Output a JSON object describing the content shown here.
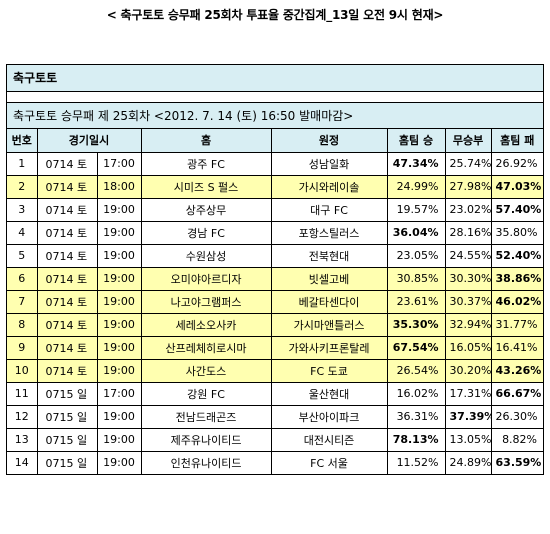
{
  "title": "< 축구토토 승무패 25회차 투표율 중간집계_13일 오전 9시 현재>",
  "category": "축구토토",
  "subtitle": "축구토토 승무패 제 25회차 <2012. 7. 14 (토) 16:50 발매마감>",
  "headers": {
    "no": "번호",
    "schedule": "경기일시",
    "home": "홈",
    "away": "원정",
    "home_win": "홈팀 승",
    "draw": "무승부",
    "home_loss": "홈팀 패"
  },
  "rows": [
    {
      "no": "1",
      "date": "0714 토",
      "time": "17:00",
      "home": "광주 FC",
      "away": "성남일화",
      "win": "47.34%",
      "draw": "25.74%",
      "loss": "26.92%",
      "highlight": false,
      "bold": "win"
    },
    {
      "no": "2",
      "date": "0714 토",
      "time": "18:00",
      "home": "시미즈 S 펄스",
      "away": "가시와레이솔",
      "win": "24.99%",
      "draw": "27.98%",
      "loss": "47.03%",
      "highlight": true,
      "bold": "loss"
    },
    {
      "no": "3",
      "date": "0714 토",
      "time": "19:00",
      "home": "상주상무",
      "away": "대구 FC",
      "win": "19.57%",
      "draw": "23.02%",
      "loss": "57.40%",
      "highlight": false,
      "bold": "loss"
    },
    {
      "no": "4",
      "date": "0714 토",
      "time": "19:00",
      "home": "경남 FC",
      "away": "포항스틸러스",
      "win": "36.04%",
      "draw": "28.16%",
      "loss": "35.80%",
      "highlight": false,
      "bold": "win"
    },
    {
      "no": "5",
      "date": "0714 토",
      "time": "19:00",
      "home": "수원삼성",
      "away": "전북현대",
      "win": "23.05%",
      "draw": "24.55%",
      "loss": "52.40%",
      "highlight": false,
      "bold": "loss"
    },
    {
      "no": "6",
      "date": "0714 토",
      "time": "19:00",
      "home": "오미야아르디자",
      "away": "빗셀고베",
      "win": "30.85%",
      "draw": "30.30%",
      "loss": "38.86%",
      "highlight": true,
      "bold": "loss"
    },
    {
      "no": "7",
      "date": "0714 토",
      "time": "19:00",
      "home": "나고야그램퍼스",
      "away": "베갈타센다이",
      "win": "23.61%",
      "draw": "30.37%",
      "loss": "46.02%",
      "highlight": true,
      "bold": "loss"
    },
    {
      "no": "8",
      "date": "0714 토",
      "time": "19:00",
      "home": "세레소오사카",
      "away": "가시마앤틀러스",
      "win": "35.30%",
      "draw": "32.94%",
      "loss": "31.77%",
      "highlight": true,
      "bold": "win"
    },
    {
      "no": "9",
      "date": "0714 토",
      "time": "19:00",
      "home": "산프레체히로시마",
      "away": "가와사키프론탈레",
      "win": "67.54%",
      "draw": "16.05%",
      "loss": "16.41%",
      "highlight": true,
      "bold": "win"
    },
    {
      "no": "10",
      "date": "0714 토",
      "time": "19:00",
      "home": "사간도스",
      "away": "FC 도쿄",
      "win": "26.54%",
      "draw": "30.20%",
      "loss": "43.26%",
      "highlight": true,
      "bold": "loss"
    },
    {
      "no": "11",
      "date": "0715 일",
      "time": "17:00",
      "home": "강원 FC",
      "away": "울산현대",
      "win": "16.02%",
      "draw": "17.31%",
      "loss": "66.67%",
      "highlight": false,
      "bold": "loss"
    },
    {
      "no": "12",
      "date": "0715 일",
      "time": "19:00",
      "home": "전남드래곤즈",
      "away": "부산아이파크",
      "win": "36.31%",
      "draw": "37.39%",
      "loss": "26.30%",
      "highlight": false,
      "bold": "draw"
    },
    {
      "no": "13",
      "date": "0715 일",
      "time": "19:00",
      "home": "제주유나이티드",
      "away": "대전시티즌",
      "win": "78.13%",
      "draw": "13.05%",
      "loss": "8.82%",
      "highlight": false,
      "bold": "win"
    },
    {
      "no": "14",
      "date": "0715 일",
      "time": "19:00",
      "home": "인천유나이티드",
      "away": "FC 서울",
      "win": "11.52%",
      "draw": "24.89%",
      "loss": "63.59%",
      "highlight": false,
      "bold": "loss"
    }
  ],
  "colors": {
    "header_bg": "#d8eef3",
    "highlight_bg": "#ffffb0"
  }
}
